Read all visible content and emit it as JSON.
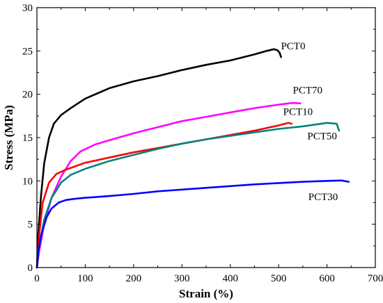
{
  "chart_data": {
    "type": "line",
    "title": "",
    "xlabel": "Strain (%)",
    "ylabel": "Stress (MPa)",
    "xlim": [
      0,
      700
    ],
    "ylim": [
      0,
      30
    ],
    "xticks": [
      0,
      100,
      200,
      300,
      400,
      500,
      600,
      700
    ],
    "yticks": [
      0,
      5,
      10,
      15,
      20,
      25,
      30
    ],
    "grid": false,
    "legend": "labels placed beside each curve end",
    "series": [
      {
        "name": "PCT0",
        "color": "#000000",
        "label_pos": [
          530,
          25.2
        ],
        "x": [
          0,
          3,
          8,
          15,
          25,
          35,
          50,
          70,
          100,
          150,
          200,
          250,
          300,
          350,
          400,
          450,
          475,
          490,
          497,
          502,
          505
        ],
        "y": [
          0,
          4,
          8,
          12,
          15,
          16.6,
          17.6,
          18.4,
          19.5,
          20.7,
          21.5,
          22.1,
          22.8,
          23.4,
          23.9,
          24.6,
          25,
          25.2,
          25.1,
          24.8,
          24.3
        ]
      },
      {
        "name": "PCT70",
        "color": "#ff00ff",
        "label_pos": [
          560,
          20.1
        ],
        "x": [
          0,
          5,
          15,
          30,
          50,
          70,
          90,
          120,
          150,
          200,
          250,
          300,
          350,
          400,
          450,
          500,
          530,
          545
        ],
        "y": [
          0,
          2,
          5,
          8,
          10.5,
          12.3,
          13.4,
          14.2,
          14.7,
          15.5,
          16.2,
          16.9,
          17.4,
          17.9,
          18.4,
          18.8,
          19,
          18.95
        ]
      },
      {
        "name": "PCT10",
        "color": "#ff0000",
        "label_pos": [
          540,
          17.6
        ],
        "x": [
          0,
          5,
          12,
          25,
          40,
          60,
          80,
          100,
          150,
          200,
          250,
          300,
          350,
          400,
          450,
          500,
          520,
          527
        ],
        "y": [
          0,
          4,
          7.5,
          9.8,
          10.8,
          11.3,
          11.7,
          12.1,
          12.7,
          13.3,
          13.8,
          14.3,
          14.8,
          15.3,
          15.8,
          16.4,
          16.7,
          16.6
        ]
      },
      {
        "name": "PCT50",
        "color": "#00827f",
        "label_pos": [
          590,
          14.8
        ],
        "x": [
          0,
          5,
          15,
          30,
          50,
          70,
          100,
          150,
          200,
          250,
          300,
          350,
          400,
          450,
          500,
          550,
          600,
          620,
          625
        ],
        "y": [
          0,
          2.5,
          5.5,
          8,
          9.8,
          10.7,
          11.4,
          12.3,
          13,
          13.7,
          14.3,
          14.8,
          15.2,
          15.6,
          16,
          16.3,
          16.7,
          16.6,
          15.8
        ]
      },
      {
        "name": "PCT30",
        "color": "#0000ff",
        "label_pos": [
          592,
          7.8
        ],
        "x": [
          0,
          3,
          10,
          20,
          30,
          45,
          60,
          80,
          100,
          150,
          200,
          250,
          300,
          350,
          400,
          450,
          500,
          550,
          600,
          630,
          645
        ],
        "y": [
          0,
          2,
          4,
          5.8,
          6.8,
          7.5,
          7.8,
          7.95,
          8.05,
          8.25,
          8.5,
          8.8,
          9,
          9.2,
          9.4,
          9.6,
          9.75,
          9.9,
          10,
          10.05,
          9.9
        ]
      }
    ]
  }
}
